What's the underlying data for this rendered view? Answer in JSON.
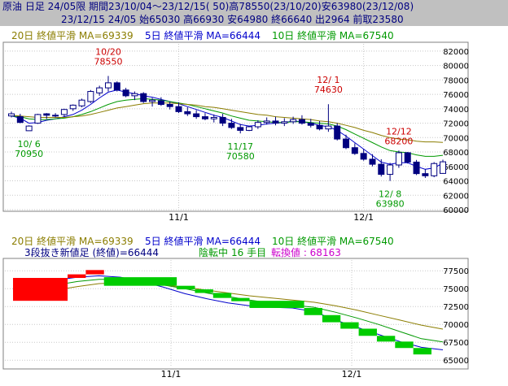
{
  "header": {
    "line1": "原油 日足 24/05限 期間23/10/04～23/12/15( 50)高78550(23/10/20)安63980(23/12/08)",
    "line2": "23/12/15 24/05 始65030 高66930 安64980 終66640 出2964 前取23580"
  },
  "top_panel": {
    "legend": {
      "ma20": "20日 終値平滑 MA=69339",
      "ma5": "5日 終値平滑 MA=66444",
      "ma10": "10日 終値平滑 MA=67540"
    },
    "annotations": [
      {
        "date": "10/20",
        "value": "78550",
        "color": "#cc0000"
      },
      {
        "date": "10/ 6",
        "value": "70950",
        "color": "#009900"
      },
      {
        "date": "11/17",
        "value": "70580",
        "color": "#009900"
      },
      {
        "date": "12/ 1",
        "value": "74630",
        "color": "#cc0000"
      },
      {
        "date": "12/12",
        "value": "68200",
        "color": "#cc0000"
      },
      {
        "date": "12/ 8",
        "value": "63980",
        "color": "#009900"
      }
    ]
  },
  "bottom_panel": {
    "legend": {
      "ma20": "20日 終値平滑 MA=69339",
      "ma5": "5日 終値平滑 MA=66444",
      "ma10": "10日 終値平滑 MA=67540"
    },
    "subtitle": "3段抜き新値足 (終値)=66444",
    "status_label": "陰転中",
    "count_label": "16 手目",
    "reversal_label": "転換値 : 68163"
  },
  "colors": {
    "ma20": "#8b7d00",
    "ma5": "#0000cc",
    "ma10": "#009900",
    "candle": "#000080",
    "up_block": "#ff0000",
    "down_block": "#00cc00",
    "grid": "#c8c8c8",
    "panel_border": "#808080",
    "header_text": "#000080"
  },
  "chart_data": [
    {
      "type": "candlestick",
      "title": "原油 日足 24/05限",
      "y_ticks": [
        60000,
        62000,
        64000,
        66000,
        68000,
        70000,
        72000,
        74000,
        76000,
        78000,
        80000,
        82000
      ],
      "ylim": [
        60000,
        83000
      ],
      "x_tick_labels": [
        "11/1",
        "12/1"
      ],
      "candles": [
        [
          73000,
          73600,
          72800,
          73300
        ],
        [
          72900,
          73300,
          72000,
          72100
        ],
        [
          70950,
          71700,
          70950,
          71600
        ],
        [
          72000,
          73300,
          71900,
          73200
        ],
        [
          73300,
          73400,
          72600,
          73100
        ],
        [
          73000,
          73400,
          72800,
          73100
        ],
        [
          73200,
          74000,
          72900,
          73900
        ],
        [
          74000,
          74600,
          73700,
          74500
        ],
        [
          74400,
          75400,
          74200,
          75200
        ],
        [
          75000,
          76600,
          74800,
          76400
        ],
        [
          76200,
          77200,
          75800,
          76900
        ],
        [
          76900,
          78550,
          76400,
          77600
        ],
        [
          77600,
          77800,
          76400,
          76600
        ],
        [
          76600,
          76900,
          75600,
          75800
        ],
        [
          75800,
          76400,
          75200,
          76100
        ],
        [
          76100,
          76300,
          74800,
          75000
        ],
        [
          75000,
          75500,
          74300,
          75200
        ],
        [
          75100,
          75600,
          74400,
          74600
        ],
        [
          74600,
          75000,
          73900,
          74300
        ],
        [
          74300,
          74900,
          73400,
          73600
        ],
        [
          73600,
          74200,
          73000,
          73300
        ],
        [
          73300,
          73800,
          72600,
          72900
        ],
        [
          72900,
          73400,
          72400,
          72600
        ],
        [
          72600,
          73200,
          72100,
          72800
        ],
        [
          72800,
          73300,
          71600,
          72000
        ],
        [
          72000,
          72600,
          71200,
          71400
        ],
        [
          71400,
          71900,
          70580,
          71000
        ],
        [
          71000,
          71600,
          70900,
          71500
        ],
        [
          71500,
          72400,
          71200,
          72100
        ],
        [
          72100,
          72800,
          71800,
          72300
        ],
        [
          72300,
          72900,
          71700,
          72000
        ],
        [
          72000,
          72700,
          71600,
          72200
        ],
        [
          72200,
          72900,
          71900,
          72500
        ],
        [
          72500,
          73100,
          71800,
          72000
        ],
        [
          72000,
          72600,
          71400,
          71700
        ],
        [
          71700,
          72300,
          71000,
          71200
        ],
        [
          71200,
          74630,
          70800,
          71600
        ],
        [
          71600,
          72000,
          69600,
          69800
        ],
        [
          69800,
          70400,
          68400,
          68600
        ],
        [
          68600,
          69200,
          67600,
          67800
        ],
        [
          67800,
          68400,
          66800,
          67000
        ],
        [
          67000,
          67700,
          66000,
          66300
        ],
        [
          66300,
          67000,
          64600,
          64900
        ],
        [
          64900,
          66500,
          63980,
          66200
        ],
        [
          66200,
          68200,
          65800,
          67900
        ],
        [
          67900,
          68000,
          66400,
          66600
        ],
        [
          66600,
          66900,
          64800,
          65000
        ],
        [
          65000,
          65600,
          64400,
          64700
        ],
        [
          64700,
          66600,
          64500,
          66400
        ],
        [
          65030,
          66930,
          64980,
          66640
        ]
      ],
      "series": [
        {
          "name": "5日 終値平滑",
          "values": [
            73000,
            72700,
            72000,
            72100,
            72400,
            72600,
            72900,
            73200,
            73800,
            74600,
            75500,
            76300,
            76600,
            76300,
            76100,
            75800,
            75600,
            75300,
            75000,
            74700,
            74300,
            73900,
            73500,
            73100,
            72800,
            72300,
            71800,
            71600,
            71700,
            71900,
            72000,
            72100,
            72300,
            72200,
            72000,
            71700,
            71500,
            71000,
            70200,
            69300,
            68400,
            67500,
            66600,
            66300,
            66500,
            66500,
            66000,
            65600,
            65800,
            66444
          ]
        },
        {
          "name": "10日 終値平滑",
          "values": [
            73000,
            72900,
            72600,
            72500,
            72500,
            72600,
            72700,
            72900,
            73200,
            73600,
            74100,
            74600,
            75000,
            75200,
            75300,
            75400,
            75300,
            75200,
            75000,
            74800,
            74600,
            74300,
            74000,
            73700,
            73400,
            73000,
            72700,
            72400,
            72300,
            72200,
            72100,
            72100,
            72200,
            72200,
            72100,
            72000,
            71900,
            71600,
            71100,
            70500,
            69900,
            69300,
            68700,
            68200,
            68000,
            67900,
            67600,
            67400,
            67400,
            67540
          ]
        },
        {
          "name": "20日 終値平滑",
          "values": [
            73100,
            73000,
            72900,
            72800,
            72800,
            72800,
            72800,
            72900,
            73000,
            73200,
            73500,
            73800,
            74100,
            74300,
            74500,
            74700,
            74800,
            74800,
            74800,
            74700,
            74600,
            74500,
            74300,
            74200,
            74000,
            73800,
            73600,
            73400,
            73200,
            73100,
            72900,
            72800,
            72700,
            72600,
            72500,
            72300,
            72200,
            72000,
            71700,
            71400,
            71000,
            70700,
            70300,
            70000,
            69800,
            69700,
            69500,
            69400,
            69400,
            69339
          ]
        }
      ]
    },
    {
      "type": "new_price_three_line_break",
      "title": "3段抜き新値足 (終値)=66444",
      "y_ticks": [
        65000,
        67500,
        70000,
        72500,
        75000,
        77500
      ],
      "ylim": [
        64000,
        79000
      ],
      "x_tick_labels": [
        "11/1",
        "12/1"
      ],
      "blocks": [
        {
          "from": 73300,
          "to": 76500,
          "dir": "up"
        },
        {
          "from": 76500,
          "to": 77000,
          "dir": "up"
        },
        {
          "from": 77000,
          "to": 77600,
          "dir": "up"
        },
        {
          "from": 76600,
          "to": 75400,
          "dir": "down"
        },
        {
          "from": 75400,
          "to": 74900,
          "dir": "down"
        },
        {
          "from": 74900,
          "to": 74400,
          "dir": "down"
        },
        {
          "from": 74400,
          "to": 73700,
          "dir": "down"
        },
        {
          "from": 73700,
          "to": 73300,
          "dir": "down"
        },
        {
          "from": 73300,
          "to": 72300,
          "dir": "down"
        },
        {
          "from": 72300,
          "to": 71300,
          "dir": "down"
        },
        {
          "from": 71300,
          "to": 70300,
          "dir": "down"
        },
        {
          "from": 70300,
          "to": 69400,
          "dir": "down"
        },
        {
          "from": 69400,
          "to": 68400,
          "dir": "down"
        },
        {
          "from": 68400,
          "to": 67600,
          "dir": "down"
        },
        {
          "from": 67600,
          "to": 66700,
          "dir": "down"
        },
        {
          "from": 66700,
          "to": 65800,
          "dir": "down"
        }
      ],
      "series": [
        {
          "name": "5日 終値平滑",
          "values": [
            75000,
            75400,
            76200,
            76600,
            76800,
            76600,
            76000,
            75200,
            74300,
            73600,
            73000,
            72600,
            72400,
            72300,
            71800,
            70600,
            69600,
            68600,
            67600,
            66800,
            66444
          ]
        },
        {
          "name": "10日 終値平滑",
          "values": [
            74600,
            74900,
            75500,
            76000,
            76300,
            76300,
            76000,
            75500,
            75000,
            74400,
            73900,
            73400,
            73000,
            72700,
            72400,
            71700,
            70900,
            70000,
            69000,
            68000,
            67540
          ]
        },
        {
          "name": "20日 終値平滑",
          "values": [
            74200,
            74400,
            74800,
            75300,
            75700,
            75800,
            75700,
            75500,
            75200,
            74800,
            74400,
            74000,
            73700,
            73400,
            73100,
            72600,
            72000,
            71300,
            70600,
            69900,
            69339
          ]
        }
      ]
    }
  ]
}
